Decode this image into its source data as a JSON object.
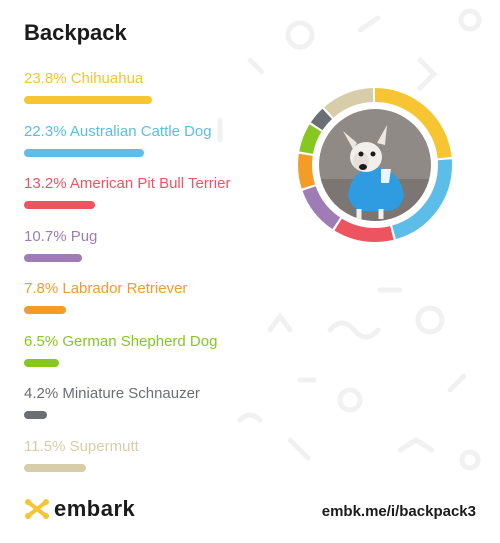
{
  "title": "Backpack",
  "chart_data": {
    "type": "donut",
    "series": [
      {
        "name": "Chihuahua",
        "percent": 23.8,
        "label": "23.8% Chihuahua",
        "color": "#f7c531"
      },
      {
        "name": "Australian Cattle Dog",
        "percent": 22.3,
        "label": "22.3% Australian Cattle Dog",
        "color": "#5bbde8"
      },
      {
        "name": "American Pit Bull Terrier",
        "percent": 13.2,
        "label": "13.2% American Pit Bull Terrier",
        "color": "#ec5560"
      },
      {
        "name": "Pug",
        "percent": 10.7,
        "label": "10.7% Pug",
        "color": "#a07cb6"
      },
      {
        "name": "Labrador Retriever",
        "percent": 7.8,
        "label": "7.8% Labrador Retriever",
        "color": "#f39c26"
      },
      {
        "name": "German Shepherd Dog",
        "percent": 6.5,
        "label": "6.5% German Shepherd Dog",
        "color": "#86c81f"
      },
      {
        "name": "Miniature Schnauzer",
        "percent": 4.2,
        "label": "4.2% Miniature Schnauzer",
        "color": "#6b6e72"
      },
      {
        "name": "Supermutt",
        "percent": 11.5,
        "label": "11.5% Supermutt",
        "color": "#d7cda8"
      }
    ]
  },
  "photo": {
    "subject": "dog-photo",
    "description_icon": "dog-in-blue-shirt"
  },
  "footer": {
    "brand": "embark",
    "url": "embk.me/i/backpack3",
    "brand_color": "#f7c531"
  }
}
